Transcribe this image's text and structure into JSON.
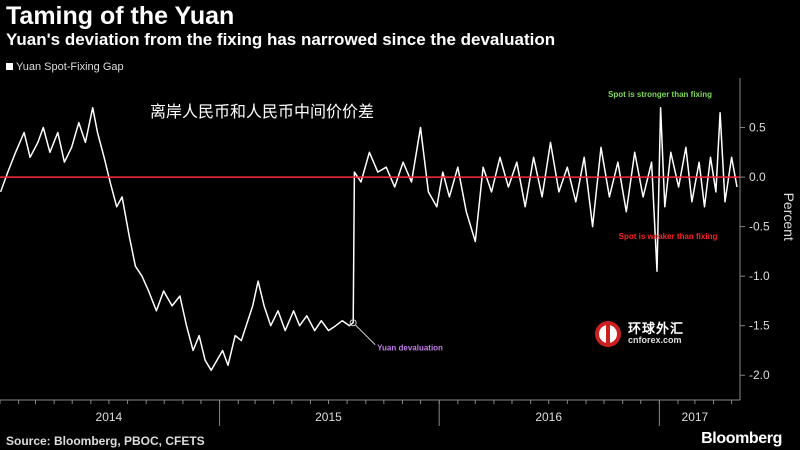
{
  "header": {
    "title": "Taming of the Yuan",
    "subtitle": "Yuan's deviation from the fixing has narrowed since the devaluation",
    "legend_label": "Yuan Spot-Fixing Gap",
    "overlay_label": "离岸人民币和人民币中间价价差"
  },
  "footer": {
    "source": "Source: Bloomberg, PBOC, CFETS",
    "brand": "Bloomberg"
  },
  "watermark": {
    "cn": "环球外汇",
    "en": "cnforex.com"
  },
  "colors": {
    "series": "#ffffff",
    "zero_line": "#ff2a3d",
    "up": "#7ed957",
    "down": "#ff2020",
    "event": "#c27ee8",
    "axis": "#888888"
  },
  "chart_data": {
    "type": "line",
    "title": "Taming of the Yuan",
    "subtitle": "Yuan's deviation from the fixing has narrowed since the devaluation",
    "ylabel": "Percent",
    "ylim": [
      -2.25,
      1.0
    ],
    "xlim": [
      "2014-01-01",
      "2017-05-15"
    ],
    "yticks": [
      0.5,
      0.0,
      -0.5,
      -1.0,
      -1.5,
      -2.0
    ],
    "ytick_labels": [
      "0.5",
      "0.0",
      "-0.5",
      "-1.0",
      "-1.5",
      "-2.0"
    ],
    "xticks": [
      {
        "label": "2014",
        "date": "2014-07-01"
      },
      {
        "label": "2015",
        "date": "2015-07-01"
      },
      {
        "label": "2016",
        "date": "2016-07-01"
      },
      {
        "label": "2017",
        "date": "2017-03-01"
      }
    ],
    "annotations": [
      {
        "text": "Spot is stronger than fixing",
        "color": "#7ed957"
      },
      {
        "text": "Spot is weaker than fixing",
        "color": "#ff2020"
      },
      {
        "text": "Yuan devaluation",
        "color": "#c27ee8",
        "date": "2015-08-11",
        "y": -1.47
      }
    ],
    "reference_line": {
      "y": 0.0,
      "color": "#ff2a3d"
    },
    "series": [
      {
        "name": "Yuan Spot-Fixing Gap",
        "points": [
          [
            "2014-01-02",
            -0.15
          ],
          [
            "2014-01-14",
            0.05
          ],
          [
            "2014-01-27",
            0.25
          ],
          [
            "2014-02-10",
            0.45
          ],
          [
            "2014-02-20",
            0.2
          ],
          [
            "2014-03-05",
            0.35
          ],
          [
            "2014-03-14",
            0.5
          ],
          [
            "2014-03-25",
            0.25
          ],
          [
            "2014-04-07",
            0.45
          ],
          [
            "2014-04-18",
            0.15
          ],
          [
            "2014-04-30",
            0.3
          ],
          [
            "2014-05-12",
            0.55
          ],
          [
            "2014-05-23",
            0.35
          ],
          [
            "2014-06-04",
            0.7
          ],
          [
            "2014-06-12",
            0.45
          ],
          [
            "2014-06-23",
            0.2
          ],
          [
            "2014-07-03",
            -0.05
          ],
          [
            "2014-07-14",
            -0.3
          ],
          [
            "2014-07-23",
            -0.2
          ],
          [
            "2014-08-04",
            -0.6
          ],
          [
            "2014-08-14",
            -0.9
          ],
          [
            "2014-08-25",
            -1.0
          ],
          [
            "2014-09-05",
            -1.15
          ],
          [
            "2014-09-18",
            -1.35
          ],
          [
            "2014-09-30",
            -1.15
          ],
          [
            "2014-10-14",
            -1.3
          ],
          [
            "2014-10-27",
            -1.2
          ],
          [
            "2014-11-07",
            -1.5
          ],
          [
            "2014-11-18",
            -1.75
          ],
          [
            "2014-11-28",
            -1.6
          ],
          [
            "2014-12-08",
            -1.85
          ],
          [
            "2014-12-18",
            -1.95
          ],
          [
            "2015-01-06",
            -1.75
          ],
          [
            "2015-01-15",
            -1.9
          ],
          [
            "2015-01-27",
            -1.6
          ],
          [
            "2015-02-06",
            -1.65
          ],
          [
            "2015-02-25",
            -1.3
          ],
          [
            "2015-03-06",
            -1.05
          ],
          [
            "2015-03-16",
            -1.3
          ],
          [
            "2015-03-27",
            -1.5
          ],
          [
            "2015-04-08",
            -1.35
          ],
          [
            "2015-04-20",
            -1.55
          ],
          [
            "2015-05-04",
            -1.35
          ],
          [
            "2015-05-14",
            -1.5
          ],
          [
            "2015-05-26",
            -1.4
          ],
          [
            "2015-06-08",
            -1.55
          ],
          [
            "2015-06-19",
            -1.45
          ],
          [
            "2015-07-01",
            -1.55
          ],
          [
            "2015-07-13",
            -1.5
          ],
          [
            "2015-07-24",
            -1.45
          ],
          [
            "2015-08-05",
            -1.5
          ],
          [
            "2015-08-11",
            -1.47
          ],
          [
            "2015-08-13",
            0.05
          ],
          [
            "2015-08-24",
            -0.05
          ],
          [
            "2015-09-07",
            0.25
          ],
          [
            "2015-09-21",
            0.05
          ],
          [
            "2015-10-05",
            0.1
          ],
          [
            "2015-10-19",
            -0.1
          ],
          [
            "2015-11-02",
            0.15
          ],
          [
            "2015-11-16",
            -0.05
          ],
          [
            "2015-12-01",
            0.5
          ],
          [
            "2015-12-14",
            -0.15
          ],
          [
            "2015-12-28",
            -0.3
          ],
          [
            "2016-01-07",
            0.05
          ],
          [
            "2016-01-18",
            -0.2
          ],
          [
            "2016-02-01",
            0.1
          ],
          [
            "2016-02-15",
            -0.35
          ],
          [
            "2016-03-01",
            -0.65
          ],
          [
            "2016-03-14",
            0.1
          ],
          [
            "2016-03-28",
            -0.15
          ],
          [
            "2016-04-11",
            0.2
          ],
          [
            "2016-04-25",
            -0.1
          ],
          [
            "2016-05-09",
            0.15
          ],
          [
            "2016-05-23",
            -0.3
          ],
          [
            "2016-06-06",
            0.2
          ],
          [
            "2016-06-20",
            -0.2
          ],
          [
            "2016-07-04",
            0.35
          ],
          [
            "2016-07-18",
            -0.15
          ],
          [
            "2016-08-01",
            0.1
          ],
          [
            "2016-08-15",
            -0.25
          ],
          [
            "2016-08-29",
            0.2
          ],
          [
            "2016-09-12",
            -0.5
          ],
          [
            "2016-09-26",
            0.3
          ],
          [
            "2016-10-10",
            -0.2
          ],
          [
            "2016-10-24",
            0.15
          ],
          [
            "2016-11-07",
            -0.35
          ],
          [
            "2016-11-21",
            0.25
          ],
          [
            "2016-12-05",
            -0.2
          ],
          [
            "2016-12-19",
            0.15
          ],
          [
            "2016-12-28",
            -0.95
          ],
          [
            "2017-01-03",
            0.7
          ],
          [
            "2017-01-10",
            -0.3
          ],
          [
            "2017-01-20",
            0.25
          ],
          [
            "2017-02-02",
            -0.1
          ],
          [
            "2017-02-14",
            0.3
          ],
          [
            "2017-02-24",
            -0.25
          ],
          [
            "2017-03-08",
            0.15
          ],
          [
            "2017-03-17",
            -0.3
          ],
          [
            "2017-03-27",
            0.2
          ],
          [
            "2017-04-05",
            -0.15
          ],
          [
            "2017-04-12",
            0.65
          ],
          [
            "2017-04-20",
            -0.25
          ],
          [
            "2017-05-01",
            0.2
          ],
          [
            "2017-05-10",
            -0.1
          ]
        ]
      }
    ]
  }
}
